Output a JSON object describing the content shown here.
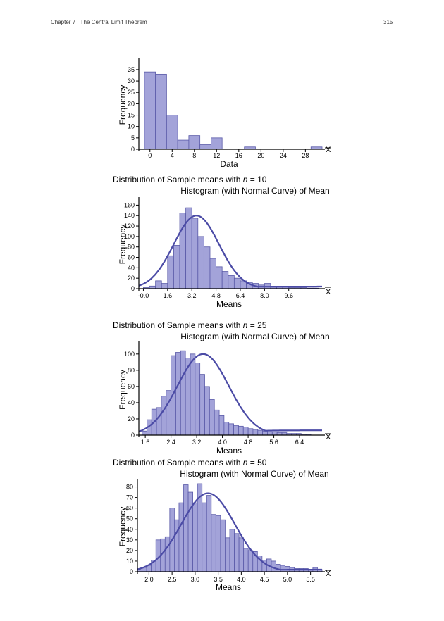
{
  "header": {
    "chapter": "Chapter 7",
    "separator": "|",
    "chapter_title": "The Central Limit Theorem",
    "page_number": "315"
  },
  "captions": [
    {
      "prefix": "Distribution of Sample means with ",
      "var": "n",
      "suffix": " = 10"
    },
    {
      "prefix": "Distribution of Sample means with ",
      "var": "n",
      "suffix": " = 25"
    },
    {
      "prefix": "Distribution of Sample means with ",
      "var": "n",
      "suffix": " = 50"
    }
  ],
  "colors": {
    "bar_fill": "#a3a3d9",
    "bar_stroke": "#5a5aa8",
    "curve": "#4b4ba6",
    "axis": "#000000"
  },
  "chart_data": [
    {
      "type": "bar",
      "title": "",
      "xlabel": "Data",
      "ylabel": "Frequency",
      "axis_end_label": "X",
      "xlim": [
        -2,
        31
      ],
      "ylim": [
        0,
        39
      ],
      "x_ticks": [
        "0",
        "4",
        "8",
        "12",
        "16",
        "20",
        "24",
        "28"
      ],
      "y_ticks": [
        "0",
        "5",
        "10",
        "15",
        "20",
        "25",
        "30",
        "35"
      ],
      "bin_width": 2,
      "bin_starts": [
        -1,
        1,
        3,
        5,
        7,
        9,
        11,
        13,
        15,
        17,
        19,
        21,
        23,
        25,
        27,
        29
      ],
      "values": [
        34,
        33,
        15,
        4,
        6,
        2,
        5,
        0,
        0,
        1,
        0,
        0,
        0,
        0,
        0,
        1
      ],
      "normal_curve": null
    },
    {
      "type": "bar",
      "title": "Histogram (with Normal Curve) of Mean",
      "xlabel": "Means",
      "ylabel": "Frequency",
      "axis_end_label": "X",
      "xlim": [
        -0.3,
        11.8
      ],
      "ylim": [
        0,
        170
      ],
      "x_ticks": [
        "-0.0",
        "1.6",
        "3.2",
        "4.8",
        "6.4",
        "8.0",
        "9.6"
      ],
      "y_ticks": [
        "0",
        "20",
        "40",
        "60",
        "80",
        "100",
        "120",
        "140",
        "160"
      ],
      "bin_width": 0.4,
      "bin_starts": [
        0.0,
        0.4,
        0.8,
        1.2,
        1.6,
        2.0,
        2.4,
        2.8,
        3.2,
        3.6,
        4.0,
        4.4,
        4.8,
        5.2,
        5.6,
        6.0,
        6.4,
        6.8,
        7.2,
        7.6,
        8.0,
        8.4,
        8.8,
        9.2,
        9.6,
        10.0,
        10.4,
        10.8,
        11.2
      ],
      "values": [
        2,
        5,
        15,
        10,
        63,
        83,
        145,
        155,
        135,
        100,
        80,
        58,
        42,
        33,
        25,
        20,
        15,
        12,
        10,
        7,
        10,
        3,
        3,
        3,
        2,
        2,
        2,
        1,
        1
      ],
      "normal_curve": {
        "mean": 3.5,
        "sd": 1.5,
        "peak": 140,
        "right_tail": 4
      }
    },
    {
      "type": "bar",
      "title": "Histogram (with Normal Curve) of Mean",
      "xlabel": "Means",
      "ylabel": "Frequency",
      "axis_end_label": "X",
      "xlim": [
        1.4,
        7.1
      ],
      "ylim": [
        0,
        112
      ],
      "x_ticks": [
        "1.6",
        "2.4",
        "3.2",
        "4.0",
        "4.8",
        "5.6",
        "6.4"
      ],
      "y_ticks": [
        "0",
        "20",
        "40",
        "60",
        "80",
        "100"
      ],
      "bin_width": 0.15,
      "bin_starts": [
        1.5,
        1.65,
        1.8,
        1.95,
        2.1,
        2.25,
        2.4,
        2.55,
        2.7,
        2.85,
        3.0,
        3.15,
        3.3,
        3.45,
        3.6,
        3.75,
        3.9,
        4.05,
        4.2,
        4.35,
        4.5,
        4.65,
        4.8,
        4.95,
        5.1,
        5.25,
        5.4,
        5.55,
        5.7,
        5.85,
        6.0,
        6.15,
        6.3,
        6.45,
        6.6
      ],
      "values": [
        5,
        19,
        32,
        34,
        48,
        55,
        98,
        102,
        104,
        95,
        100,
        89,
        75,
        60,
        44,
        31,
        24,
        16,
        14,
        12,
        11,
        10,
        8,
        7,
        6,
        5,
        4,
        4,
        3,
        3,
        2,
        2,
        2,
        1,
        1
      ],
      "normal_curve": {
        "mean": 3.4,
        "sd": 0.8,
        "peak": 100,
        "right_tail": 6
      }
    },
    {
      "type": "bar",
      "title": "Histogram (with Normal Curve) of Mean",
      "xlabel": "Means",
      "ylabel": "Frequency",
      "axis_end_label": "X",
      "xlim": [
        1.75,
        5.75
      ],
      "ylim": [
        0,
        85
      ],
      "x_ticks": [
        "2.0",
        "2.5",
        "3.0",
        "3.5",
        "4.0",
        "4.5",
        "5.0",
        "5.5"
      ],
      "y_ticks": [
        "0",
        "10",
        "20",
        "30",
        "40",
        "50",
        "60",
        "70",
        "80"
      ],
      "bin_width": 0.1,
      "bin_starts": [
        1.75,
        1.85,
        1.95,
        2.05,
        2.15,
        2.25,
        2.35,
        2.45,
        2.55,
        2.65,
        2.75,
        2.85,
        2.95,
        3.05,
        3.15,
        3.25,
        3.35,
        3.45,
        3.55,
        3.65,
        3.75,
        3.85,
        3.95,
        4.05,
        4.15,
        4.25,
        4.35,
        4.45,
        4.55,
        4.65,
        4.75,
        4.85,
        4.95,
        5.05,
        5.15,
        5.25,
        5.35,
        5.45,
        5.55,
        5.65
      ],
      "values": [
        2,
        4,
        6,
        11,
        30,
        31,
        33,
        60,
        49,
        65,
        82,
        75,
        65,
        83,
        65,
        72,
        54,
        53,
        49,
        32,
        40,
        36,
        32,
        22,
        20,
        19,
        15,
        11,
        12,
        10,
        7,
        6,
        5,
        4,
        3,
        3,
        3,
        2,
        4,
        2
      ],
      "normal_curve": {
        "mean": 3.28,
        "sd": 0.58,
        "peak": 74,
        "right_tail": 2
      }
    }
  ]
}
